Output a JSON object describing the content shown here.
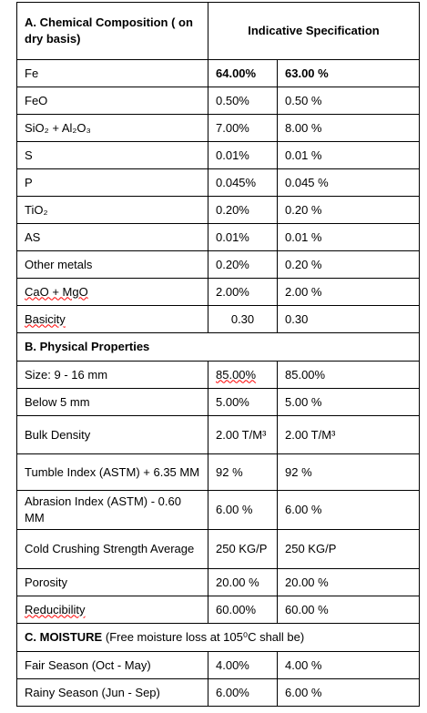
{
  "header": {
    "col1": "A. Chemical Composition ( on dry basis)",
    "col2": "Indicative Specification"
  },
  "sections": [
    {
      "title": null,
      "note": null,
      "rows": [
        [
          "Fe",
          "64.00%",
          "63.00 %"
        ],
        [
          "FeO",
          "0.50%",
          "0.50 %"
        ],
        [
          "SiO₂ + Al₂O₃",
          "7.00%",
          "8.00 %"
        ],
        [
          "S",
          "0.01%",
          "0.01 %"
        ],
        [
          "P",
          "0.045%",
          "0.045 %"
        ],
        [
          "TiO₂",
          "0.20%",
          "0.20 %"
        ],
        [
          "AS",
          "0.01%",
          "0.01 %"
        ],
        [
          "Other metals",
          "0.20%",
          "0.20 %"
        ],
        [
          "CaO + MgO",
          "2.00%",
          "2.00 %"
        ],
        [
          "Basicity",
          "0.30",
          "0.30"
        ]
      ]
    },
    {
      "title": "B. Physical Properties",
      "note": null,
      "rows": [
        [
          "Size:   9 - 16 mm",
          "85.00%",
          "85.00%"
        ],
        [
          "Below 5 mm",
          "5.00%",
          "5.00 %"
        ],
        [
          "Bulk Density",
          "2.00 T/M³",
          "2.00 T/M³"
        ],
        [
          "Tumble Index (ASTM) + 6.35 MM",
          "92 %",
          "92 %"
        ],
        [
          "Abrasion Index (ASTM) - 0.60 MM",
          "6.00 %",
          "6.00 %"
        ],
        [
          "Cold Crushing Strength Average",
          "250 KG/P",
          "250 KG/P"
        ],
        [
          "Porosity",
          "20.00 %",
          "20.00 %"
        ],
        [
          "Reducibility",
          "60.00%",
          "60.00 %"
        ]
      ]
    },
    {
      "title": "C. MOISTURE",
      "note": "(Free moisture loss at 105⁰C shall be)",
      "rows": [
        [
          "Fair Season    (Oct - May)",
          "4.00%",
          "4.00 %"
        ],
        [
          "Rainy Season (Jun - Sep)",
          "6.00%",
          "6.00 %"
        ]
      ]
    }
  ]
}
